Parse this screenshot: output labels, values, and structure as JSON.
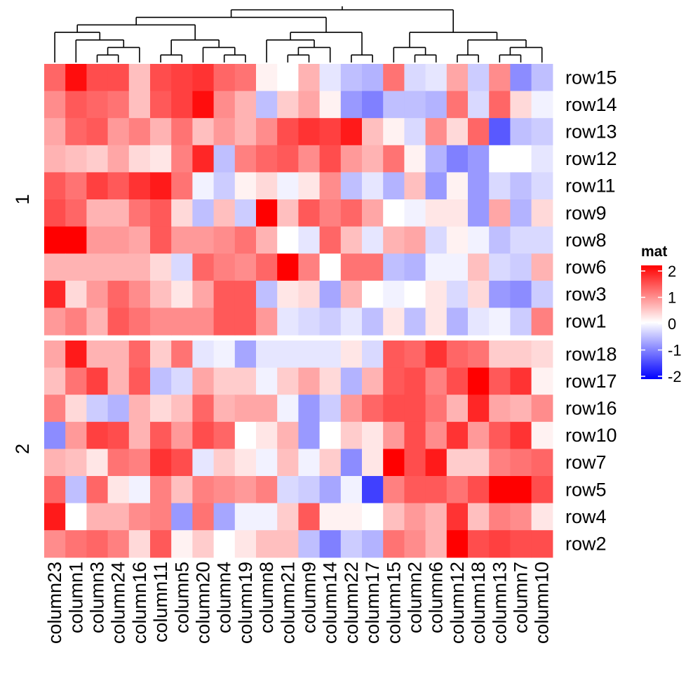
{
  "chart_data": {
    "type": "heatmap",
    "columns": [
      "column23",
      "column1",
      "column3",
      "column24",
      "column16",
      "column11",
      "column5",
      "column20",
      "column4",
      "column19",
      "column8",
      "column21",
      "column9",
      "column14",
      "column22",
      "column17",
      "column15",
      "column2",
      "column6",
      "column12",
      "column18",
      "column13",
      "column7",
      "column10"
    ],
    "row_groups": [
      {
        "label": "1",
        "rows": [
          "row15",
          "row14",
          "row13",
          "row12",
          "row11",
          "row9",
          "row8",
          "row6",
          "row3",
          "row1"
        ]
      },
      {
        "label": "2",
        "rows": [
          "row18",
          "row17",
          "row16",
          "row10",
          "row7",
          "row5",
          "row4",
          "row2"
        ]
      }
    ],
    "values": [
      [
        1.2,
        1.9,
        1.4,
        1.4,
        0.5,
        1.4,
        1.5,
        1.6,
        1.2,
        1.1,
        0.1,
        0.0,
        0.6,
        -0.2,
        -0.5,
        -0.6,
        1.1,
        -0.3,
        -0.2,
        0.7,
        -0.4,
        0.9,
        -0.9,
        -0.5
      ],
      [
        0.9,
        1.3,
        1.2,
        1.1,
        0.5,
        1.3,
        1.5,
        1.9,
        0.9,
        0.6,
        -0.5,
        0.4,
        0.7,
        0.1,
        -0.8,
        -1.0,
        -0.5,
        -0.5,
        -0.6,
        1.1,
        -0.3,
        1.2,
        0.3,
        -0.1
      ],
      [
        0.7,
        1.2,
        1.3,
        0.8,
        1.0,
        0.6,
        1.1,
        0.5,
        0.8,
        0.6,
        0.9,
        1.4,
        1.6,
        1.5,
        1.8,
        0.5,
        0.1,
        -0.3,
        0.9,
        0.3,
        1.2,
        -1.3,
        -0.5,
        -0.4
      ],
      [
        0.6,
        0.5,
        0.4,
        0.7,
        0.3,
        0.2,
        1.0,
        1.7,
        -0.5,
        1.0,
        1.2,
        1.3,
        0.9,
        1.4,
        0.8,
        0.6,
        1.1,
        0.1,
        -0.6,
        -1.0,
        -0.8,
        0.0,
        0.0,
        -0.2
      ],
      [
        1.3,
        1.1,
        1.5,
        1.3,
        1.6,
        1.8,
        1.1,
        -0.1,
        -0.4,
        0.1,
        0.3,
        -0.1,
        0.2,
        0.9,
        -0.5,
        -0.2,
        -0.6,
        0.5,
        -0.8,
        0.1,
        -0.8,
        -0.3,
        -0.5,
        -0.3
      ],
      [
        1.4,
        1.2,
        0.6,
        0.6,
        1.1,
        1.3,
        0.3,
        -0.5,
        0.5,
        -0.4,
        2.0,
        0.5,
        1.3,
        1.0,
        1.2,
        0.7,
        0.0,
        -0.1,
        0.2,
        0.2,
        -0.8,
        0.7,
        -0.6,
        0.3
      ],
      [
        2.0,
        2.1,
        0.8,
        0.8,
        0.7,
        1.3,
        0.8,
        0.8,
        0.9,
        1.1,
        0.6,
        0.0,
        -0.2,
        1.2,
        0.5,
        -0.2,
        0.6,
        0.7,
        -0.3,
        0.1,
        -0.1,
        -0.5,
        -0.3,
        -0.3
      ],
      [
        0.6,
        0.6,
        0.6,
        0.6,
        0.6,
        0.3,
        -0.3,
        1.2,
        1.0,
        0.9,
        1.2,
        2.0,
        1.0,
        0.0,
        1.1,
        1.1,
        -0.5,
        -0.6,
        -0.1,
        -0.1,
        0.5,
        -0.3,
        -0.4,
        0.6
      ],
      [
        1.7,
        0.3,
        0.8,
        1.2,
        0.9,
        0.5,
        0.2,
        0.7,
        1.3,
        1.3,
        -0.5,
        0.2,
        0.3,
        -0.7,
        0.6,
        0.0,
        -0.1,
        0.0,
        0.2,
        -0.3,
        0.3,
        -0.8,
        -0.9,
        -0.4
      ],
      [
        0.8,
        1.0,
        0.6,
        1.3,
        1.1,
        0.9,
        0.9,
        0.9,
        1.3,
        1.3,
        0.8,
        -0.2,
        -0.3,
        -0.4,
        -0.2,
        -0.5,
        0.2,
        -0.5,
        0.2,
        -0.6,
        -0.2,
        -0.1,
        -0.4,
        1.0
      ],
      [
        0.7,
        1.8,
        0.6,
        0.6,
        1.2,
        0.4,
        1.1,
        -0.2,
        -0.1,
        -0.7,
        -0.2,
        -0.2,
        -0.2,
        -0.2,
        0.2,
        -0.3,
        1.3,
        1.2,
        1.6,
        1.2,
        1.1,
        0.4,
        0.4,
        0.3
      ],
      [
        0.5,
        1.1,
        1.5,
        0.6,
        1.3,
        -0.5,
        -0.3,
        0.7,
        0.4,
        0.4,
        -0.1,
        0.4,
        0.7,
        0.3,
        -0.6,
        0.6,
        1.3,
        1.4,
        1.0,
        1.4,
        2.1,
        1.3,
        1.6,
        0.1
      ],
      [
        1.0,
        0.3,
        -0.4,
        -0.6,
        0.6,
        0.3,
        0.5,
        1.2,
        0.6,
        0.7,
        0.7,
        -0.1,
        -0.8,
        -0.4,
        0.8,
        1.2,
        1.4,
        1.4,
        1.1,
        0.6,
        1.7,
        0.7,
        0.6,
        0.9
      ],
      [
        -0.9,
        0.8,
        1.5,
        1.4,
        0.6,
        1.3,
        0.8,
        1.4,
        1.2,
        0.0,
        0.2,
        0.6,
        -0.8,
        0.0,
        0.4,
        0.2,
        0.8,
        1.4,
        0.9,
        1.6,
        0.8,
        1.3,
        1.6,
        0.1
      ],
      [
        0.6,
        0.5,
        0.2,
        1.1,
        1.0,
        1.6,
        1.4,
        -0.2,
        0.4,
        0.2,
        -0.1,
        0.5,
        -0.1,
        0.4,
        -0.9,
        0.2,
        2.3,
        1.4,
        1.8,
        0.4,
        0.4,
        1.0,
        1.1,
        1.2
      ],
      [
        1.2,
        -0.5,
        1.2,
        0.2,
        -0.1,
        1.0,
        0.5,
        1.0,
        0.9,
        0.8,
        1.0,
        -0.3,
        -0.4,
        -0.7,
        -0.1,
        -1.5,
        1.0,
        1.3,
        1.3,
        1.1,
        1.4,
        2.2,
        2.2,
        1.4
      ],
      [
        1.8,
        0.0,
        0.6,
        0.6,
        0.9,
        1.0,
        -0.8,
        1.1,
        -0.7,
        -0.1,
        -0.1,
        0.4,
        1.3,
        0.1,
        0.1,
        0.0,
        0.5,
        0.8,
        0.6,
        1.6,
        0.5,
        1.0,
        0.9,
        0.2
      ],
      [
        0.9,
        1.1,
        1.2,
        1.0,
        0.3,
        1.3,
        0.1,
        0.4,
        0.0,
        0.2,
        0.5,
        0.5,
        -0.5,
        -1.0,
        -0.4,
        -0.6,
        1.1,
        0.9,
        0.6,
        2.1,
        1.4,
        1.5,
        1.4,
        1.4
      ]
    ],
    "legend": {
      "title": "mat",
      "breaks": [
        2,
        1,
        0,
        -1,
        -2
      ],
      "labels": [
        "2",
        "1",
        "0",
        "-1",
        "-2"
      ]
    },
    "colors": {
      "high": "#ff0000",
      "mid": "#ffffff",
      "low": "#0000ff",
      "border": "#000000"
    }
  }
}
